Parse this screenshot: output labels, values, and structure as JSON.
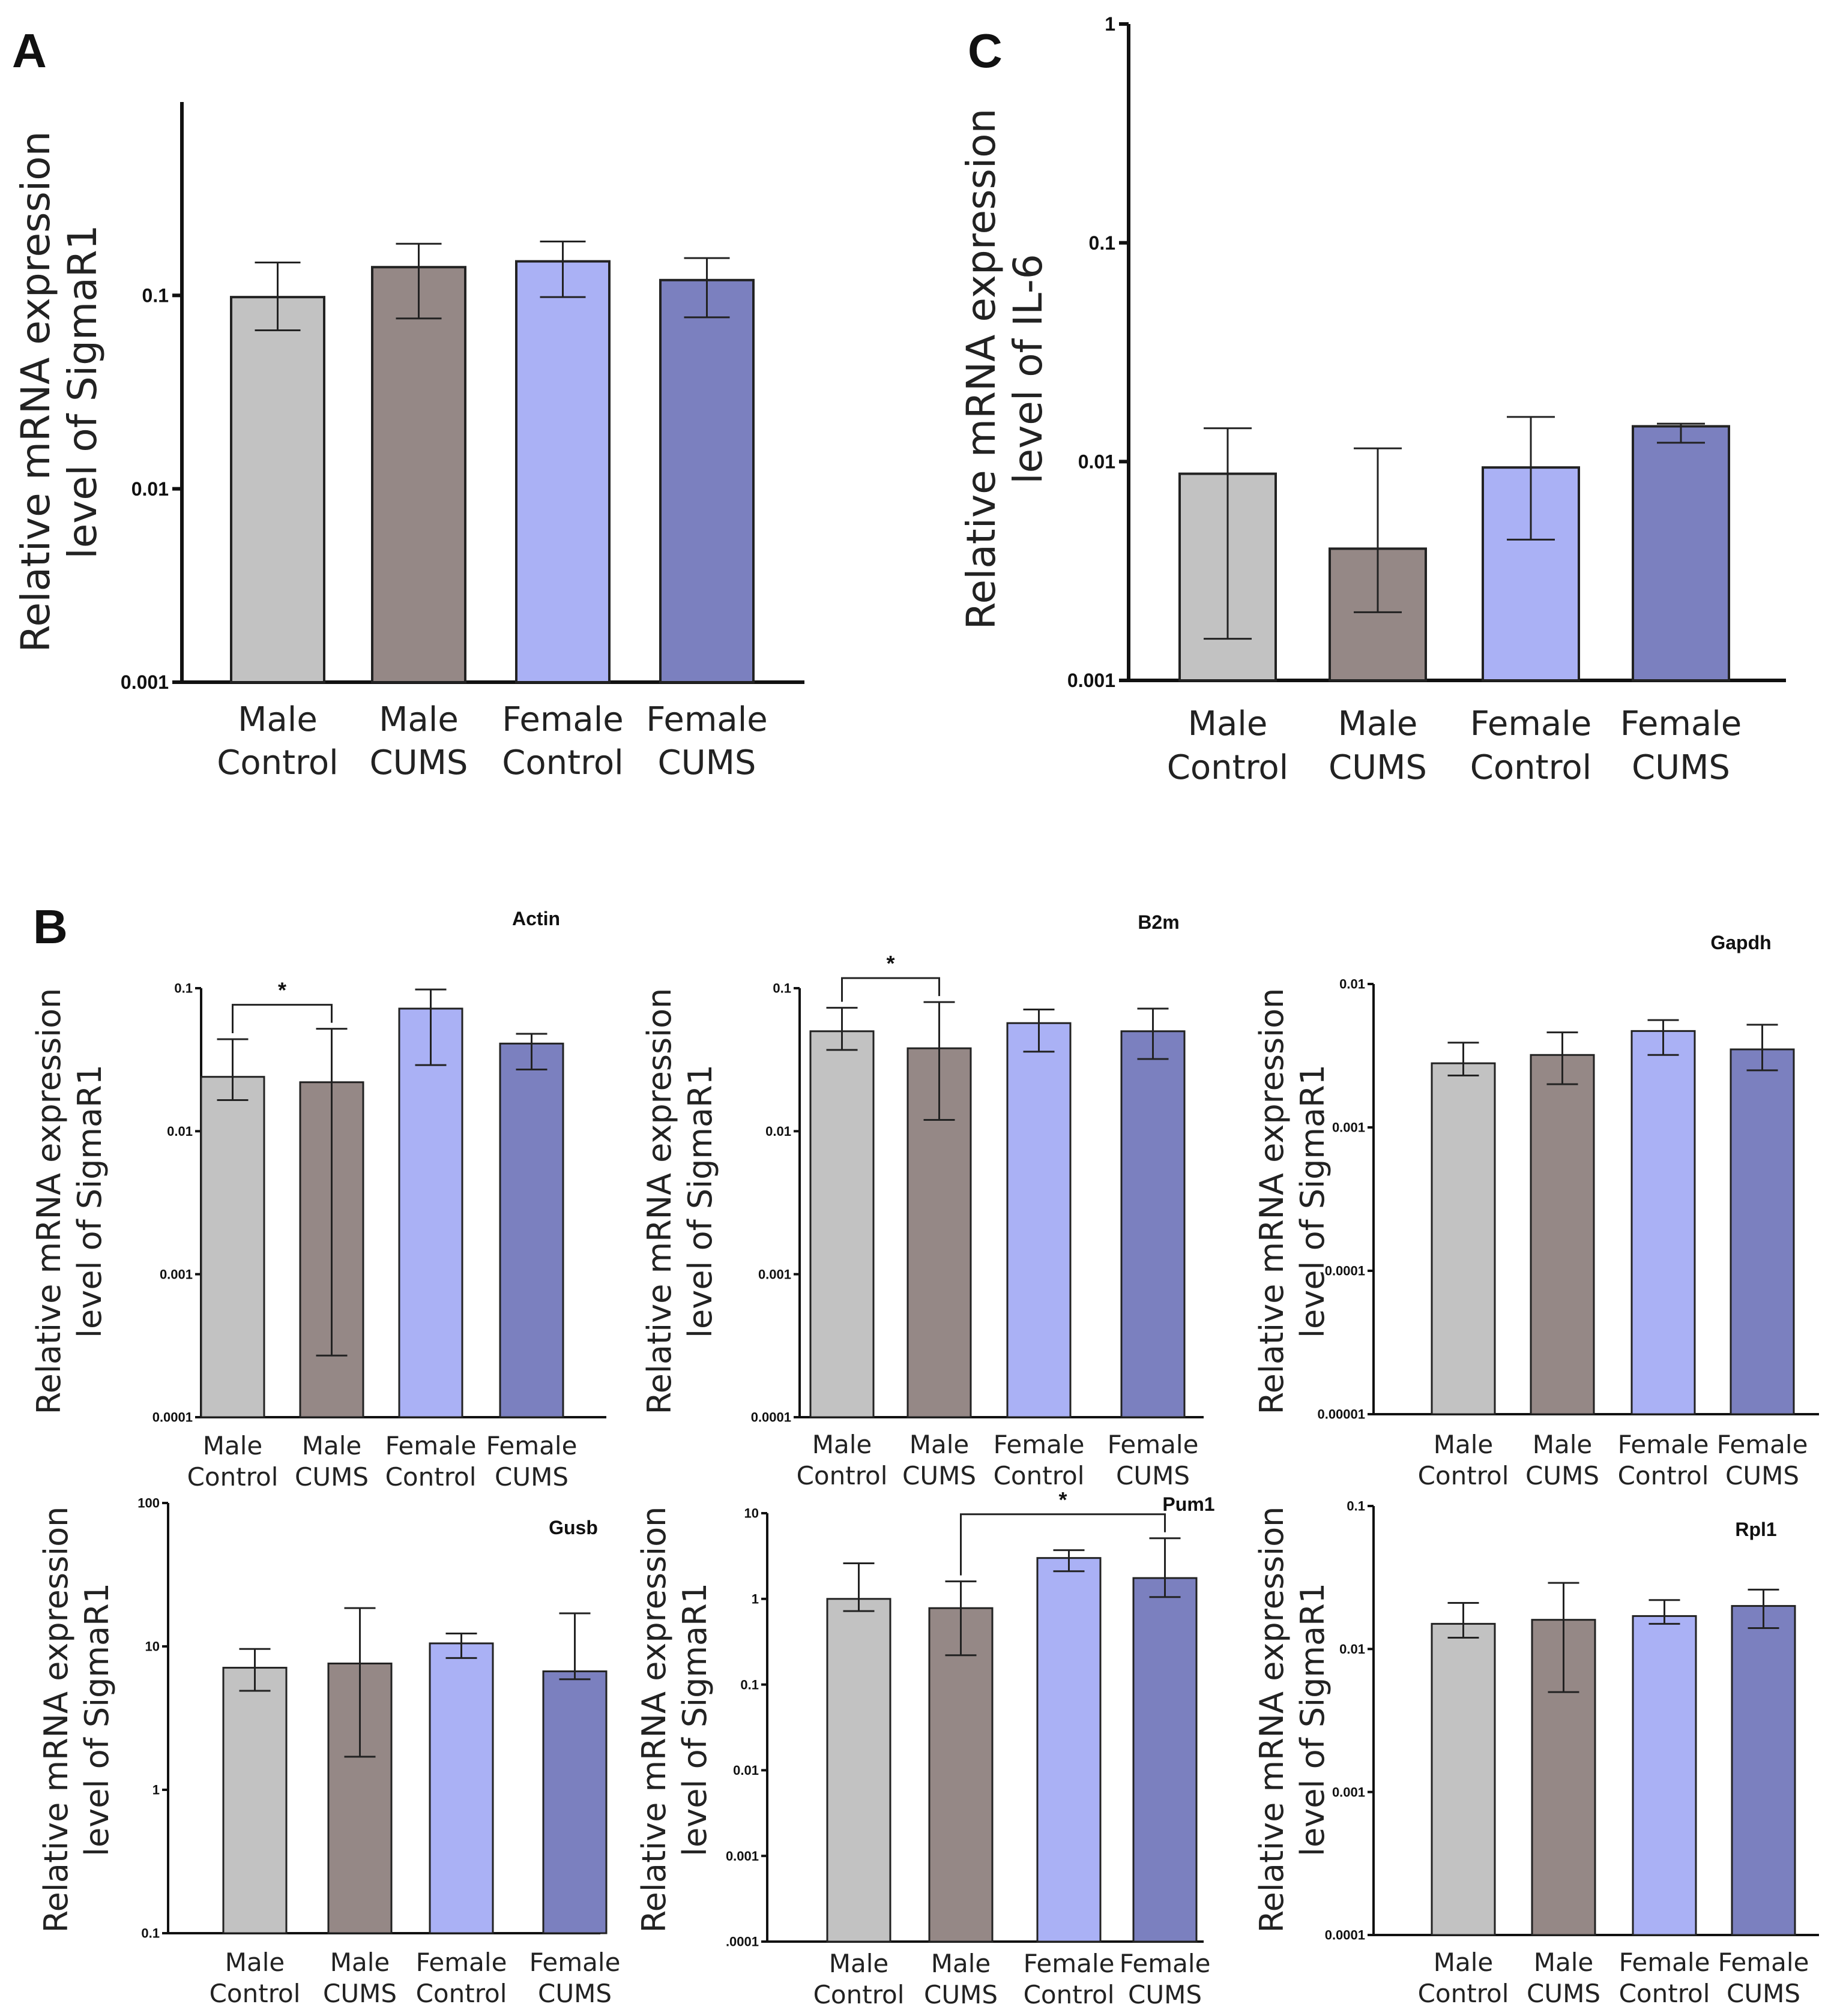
{
  "figure": {
    "panels": [
      {
        "id": "A",
        "letter": "A"
      },
      {
        "id": "B",
        "letter": "B"
      },
      {
        "id": "C",
        "letter": "C"
      }
    ]
  },
  "colors": {
    "male_control": "#c2c2c2",
    "male_cums": "#958886",
    "female_control": "#aab1f5",
    "female_cums": "#7b80bf",
    "axis": "#111111"
  },
  "chart_data": [
    {
      "id": "A",
      "type": "bar",
      "scale": "log",
      "title": "",
      "ylabel": [
        "Relative mRNA expression",
        "level of SigmaR1"
      ],
      "ylim": [
        0.001,
        1
      ],
      "ticks": [
        0.001,
        0.01,
        0.1
      ],
      "tick_labels": [
        "0.001",
        "0.01",
        "0.1"
      ],
      "categories": [
        [
          "Male",
          "Control"
        ],
        [
          "Male",
          "CUMS"
        ],
        [
          "Female",
          "Control"
        ],
        [
          "Female",
          "CUMS"
        ]
      ],
      "values": [
        0.098,
        0.14,
        0.15,
        0.12
      ],
      "err_low": [
        0.066,
        0.076,
        0.098,
        0.077
      ],
      "err_high": [
        0.148,
        0.185,
        0.19,
        0.156
      ],
      "significance": []
    },
    {
      "id": "C",
      "type": "bar",
      "scale": "log",
      "title": "",
      "ylabel": [
        "Relative mRNA expression",
        "level of  IL-6"
      ],
      "ylim": [
        0.001,
        1
      ],
      "ticks": [
        0.001,
        0.01,
        0.1,
        1
      ],
      "tick_labels": [
        "0.001",
        "0.01",
        "0.1",
        "1"
      ],
      "categories": [
        [
          "Male",
          "Control"
        ],
        [
          "Male",
          "CUMS"
        ],
        [
          "Female",
          "Control"
        ],
        [
          "Female",
          "CUMS"
        ]
      ],
      "values": [
        0.0088,
        0.004,
        0.0094,
        0.0145
      ],
      "err_low": [
        0.00155,
        0.00205,
        0.0044,
        0.0122
      ],
      "err_high": [
        0.0142,
        0.0115,
        0.016,
        0.0149
      ],
      "significance": []
    },
    {
      "id": "B-actin",
      "type": "bar",
      "scale": "log",
      "title": "Actin",
      "ylabel": [
        "Relative mRNA expression",
        "level of SigmaR1"
      ],
      "ylim": [
        0.0001,
        0.1
      ],
      "ticks": [
        0.0001,
        0.001,
        0.01,
        0.1
      ],
      "tick_labels": [
        "0.0001",
        "0.001",
        "0.01",
        "0.1"
      ],
      "categories": [
        [
          "Male",
          "Control"
        ],
        [
          "Male",
          "CUMS"
        ],
        [
          "Female",
          "Control"
        ],
        [
          "Female",
          "CUMS"
        ]
      ],
      "values": [
        0.024,
        0.022,
        0.072,
        0.041
      ],
      "err_low": [
        0.0165,
        0.00027,
        0.029,
        0.027
      ],
      "err_high": [
        0.044,
        0.052,
        0.098,
        0.048
      ],
      "significance": [
        {
          "from": 0,
          "to": 1,
          "label": "*"
        }
      ]
    },
    {
      "id": "B-b2m",
      "type": "bar",
      "scale": "log",
      "title": "B2m",
      "ylabel": [
        "Relative mRNA expression",
        "level of SigmaR1"
      ],
      "ylim": [
        0.0001,
        0.1
      ],
      "ticks": [
        0.0001,
        0.001,
        0.01,
        0.1
      ],
      "tick_labels": [
        "0.0001",
        "0.001",
        "0.01",
        "0.1"
      ],
      "categories": [
        [
          "Male",
          "Control"
        ],
        [
          "Male",
          "CUMS"
        ],
        [
          "Female",
          "Control"
        ],
        [
          "Female",
          "CUMS"
        ]
      ],
      "values": [
        0.05,
        0.038,
        0.057,
        0.05
      ],
      "err_low": [
        0.037,
        0.012,
        0.036,
        0.032
      ],
      "err_high": [
        0.073,
        0.08,
        0.071,
        0.072
      ],
      "significance": [
        {
          "from": 0,
          "to": 1,
          "label": "*"
        }
      ]
    },
    {
      "id": "B-gapdh",
      "type": "bar",
      "scale": "log",
      "title": "Gapdh",
      "ylabel": [
        "Relative mRNA expression",
        "level of SigmaR1"
      ],
      "ylim": [
        1e-05,
        0.01
      ],
      "ticks": [
        1e-05,
        0.0001,
        0.001,
        0.01
      ],
      "tick_labels": [
        "0.00001",
        "0.0001",
        "0.001",
        "0.01"
      ],
      "categories": [
        [
          "Male",
          "Control"
        ],
        [
          "Male",
          "CUMS"
        ],
        [
          "Female",
          "Control"
        ],
        [
          "Female",
          "CUMS"
        ]
      ],
      "values": [
        0.0028,
        0.0032,
        0.0047,
        0.0035
      ],
      "err_low": [
        0.0023,
        0.002,
        0.0032,
        0.0025
      ],
      "err_high": [
        0.0039,
        0.0046,
        0.0056,
        0.0052
      ],
      "significance": []
    },
    {
      "id": "B-gusb",
      "type": "bar",
      "scale": "log",
      "title": "Gusb",
      "ylabel": [
        "Relative mRNA expression",
        "level of SigmaR1"
      ],
      "ylim": [
        0.1,
        100
      ],
      "ticks": [
        0.1,
        1,
        10,
        100
      ],
      "tick_labels": [
        "0.1",
        "1",
        "10",
        "100"
      ],
      "categories": [
        [
          "Male",
          "Control"
        ],
        [
          "Male",
          "CUMS"
        ],
        [
          "Female",
          "Control"
        ],
        [
          "Female",
          "CUMS"
        ]
      ],
      "values": [
        7.1,
        7.6,
        10.5,
        6.7
      ],
      "err_low": [
        4.9,
        1.7,
        8.3,
        5.9
      ],
      "err_high": [
        9.6,
        18.5,
        12.3,
        17
      ],
      "significance": []
    },
    {
      "id": "B-pum1",
      "type": "bar",
      "scale": "log",
      "title": "Pum1",
      "ylabel": [
        "Relative mRNA expression",
        "level of SigmaR1"
      ],
      "ylim": [
        0.0001,
        10
      ],
      "ticks": [
        0.0001,
        0.001,
        0.01,
        0.1,
        1,
        10
      ],
      "tick_labels": [
        ".0001",
        "0.001",
        "0.01",
        "0.1",
        "1",
        "10"
      ],
      "categories": [
        [
          "Male",
          "Control"
        ],
        [
          "Male",
          "CUMS"
        ],
        [
          "Female",
          "Control"
        ],
        [
          "Female",
          "CUMS"
        ]
      ],
      "values": [
        1.0,
        0.78,
        3.0,
        1.75
      ],
      "err_low": [
        0.72,
        0.22,
        2.1,
        1.05
      ],
      "err_high": [
        2.6,
        1.6,
        3.7,
        5.1
      ],
      "significance": [
        {
          "from": 1,
          "to": 3,
          "label": "*"
        }
      ]
    },
    {
      "id": "B-rpl1",
      "type": "bar",
      "scale": "log",
      "title": "Rpl1",
      "ylabel": [
        "Relative mRNA expression",
        "level of SigmaR1"
      ],
      "ylim": [
        0.0001,
        0.1
      ],
      "ticks": [
        0.0001,
        0.001,
        0.01,
        0.1
      ],
      "tick_labels": [
        "0.0001",
        "0.001",
        "0.01",
        "0.1"
      ],
      "categories": [
        [
          "Male",
          "Control"
        ],
        [
          "Male",
          "CUMS"
        ],
        [
          "Female",
          "Control"
        ],
        [
          "Female",
          "CUMS"
        ]
      ],
      "values": [
        0.015,
        0.016,
        0.017,
        0.02
      ],
      "err_low": [
        0.012,
        0.005,
        0.015,
        0.014
      ],
      "err_high": [
        0.021,
        0.029,
        0.022,
        0.026
      ],
      "significance": []
    }
  ]
}
